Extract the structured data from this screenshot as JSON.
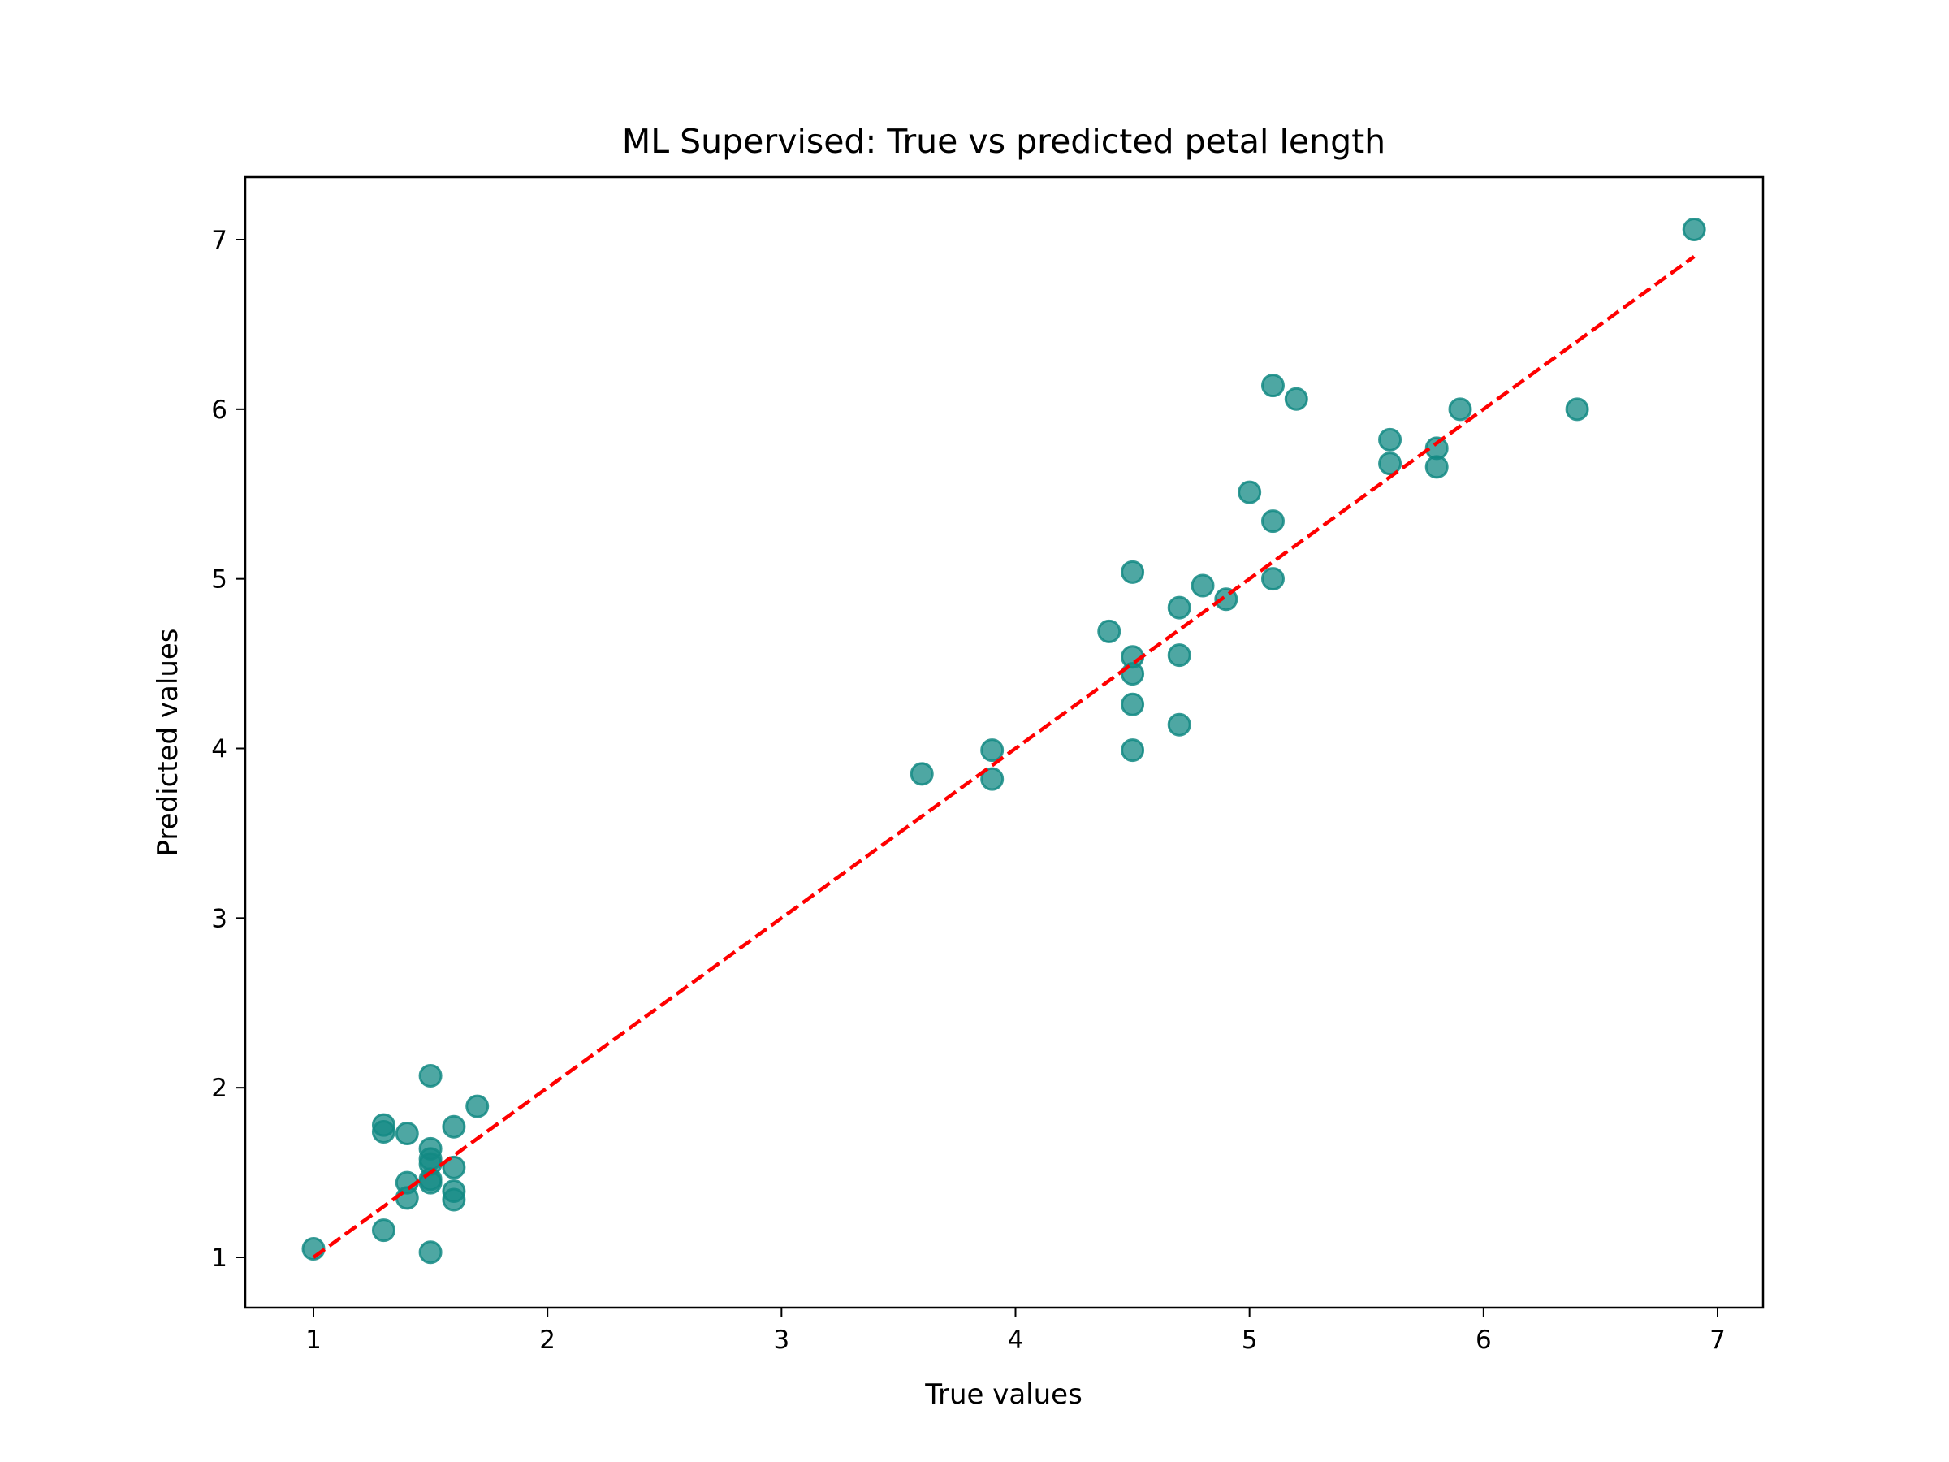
{
  "chart_data": {
    "type": "scatter",
    "title": "ML Supervised: True vs predicted petal length",
    "xlabel": "True values",
    "ylabel": "Predicted values",
    "xlim": [
      0.7,
      7.2
    ],
    "ylim": [
      0.7,
      7.37
    ],
    "xticks": [
      1,
      2,
      3,
      4,
      5,
      6,
      7
    ],
    "yticks": [
      1,
      2,
      3,
      4,
      5,
      6,
      7
    ],
    "grid": false,
    "marker_color": "#138a84",
    "line_color": "#ff0000",
    "reference_line": {
      "name": "y = x",
      "style": "dashed",
      "x": [
        1.0,
        6.9
      ],
      "y": [
        1.0,
        6.9
      ]
    },
    "series": [
      {
        "name": "predictions",
        "points": [
          [
            1.0,
            1.05
          ],
          [
            1.3,
            1.78
          ],
          [
            1.3,
            1.74
          ],
          [
            1.3,
            1.16
          ],
          [
            1.4,
            1.73
          ],
          [
            1.4,
            1.44
          ],
          [
            1.4,
            1.35
          ],
          [
            1.5,
            2.07
          ],
          [
            1.5,
            1.64
          ],
          [
            1.5,
            1.58
          ],
          [
            1.5,
            1.55
          ],
          [
            1.5,
            1.46
          ],
          [
            1.5,
            1.44
          ],
          [
            1.5,
            1.03
          ],
          [
            1.6,
            1.77
          ],
          [
            1.6,
            1.53
          ],
          [
            1.6,
            1.39
          ],
          [
            1.6,
            1.34
          ],
          [
            1.7,
            1.89
          ],
          [
            3.6,
            3.85
          ],
          [
            3.9,
            3.99
          ],
          [
            3.9,
            3.82
          ],
          [
            4.4,
            4.69
          ],
          [
            4.5,
            5.04
          ],
          [
            4.5,
            4.54
          ],
          [
            4.5,
            4.44
          ],
          [
            4.5,
            4.26
          ],
          [
            4.5,
            3.99
          ],
          [
            4.7,
            4.83
          ],
          [
            4.7,
            4.55
          ],
          [
            4.7,
            4.14
          ],
          [
            4.8,
            4.96
          ],
          [
            4.9,
            4.88
          ],
          [
            5.0,
            5.51
          ],
          [
            5.1,
            6.14
          ],
          [
            5.1,
            5.34
          ],
          [
            5.1,
            5.0
          ],
          [
            5.2,
            6.06
          ],
          [
            5.6,
            5.82
          ],
          [
            5.6,
            5.68
          ],
          [
            5.8,
            5.77
          ],
          [
            5.8,
            5.66
          ],
          [
            5.9,
            6.0
          ],
          [
            6.4,
            6.0
          ],
          [
            6.9,
            7.06
          ]
        ]
      }
    ]
  }
}
